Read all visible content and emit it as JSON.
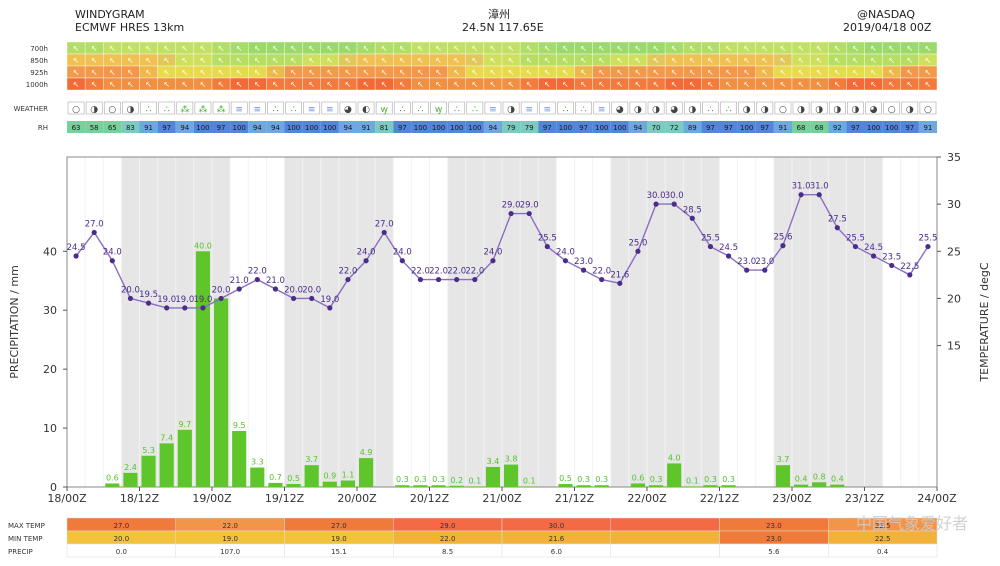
{
  "header": {
    "left_line1": "WINDYGRAM",
    "left_line2": "ECMWF HRES 13km",
    "center_line1": "漳州",
    "center_line2": "24.5N 117.65E",
    "right_line1": "@NASDAQ",
    "right_line2": "2019/04/18 00Z"
  },
  "wind_levels": [
    "700h",
    "850h",
    "925h",
    "1000h"
  ],
  "weather_label": "WEATHER",
  "rh_label": "RH",
  "rh_values": [
    63,
    58,
    65,
    83,
    91,
    97,
    94,
    100,
    97,
    100,
    94,
    94,
    100,
    100,
    100,
    94,
    91,
    81,
    97,
    100,
    100,
    100,
    100,
    94,
    79,
    79,
    97,
    100,
    97,
    100,
    100,
    94,
    70,
    72,
    89,
    97,
    97,
    100,
    97,
    91,
    68,
    68,
    92,
    97,
    100,
    100,
    97,
    91
  ],
  "colors": {
    "bar": "#5ec52b",
    "bar_label": "#57c22a",
    "temp_line": "#8a6fc0",
    "temp_point": "#4b2c8a",
    "temp_label": "#4b2c8a",
    "shade": "#e6e6e6",
    "rh_low": "#5ec58a",
    "rh_high": "#4f7fd2"
  },
  "chart_data": {
    "type": "bar+line",
    "x_ticks": [
      "18/00Z",
      "18/12Z",
      "19/00Z",
      "19/12Z",
      "20/00Z",
      "20/12Z",
      "21/00Z",
      "21/12Z",
      "22/00Z",
      "22/12Z",
      "23/00Z",
      "23/12Z",
      "24/00Z"
    ],
    "precip_series": {
      "name": "PRECIPITATION / mm",
      "ylabel": "PRECIPITATION / mm",
      "ylim": [
        0,
        56
      ],
      "yticks": [
        0,
        10,
        20,
        30,
        40
      ],
      "values": [
        0,
        0,
        0.6,
        2.4,
        5.3,
        7.4,
        9.7,
        40.0,
        32.0,
        9.5,
        3.3,
        0.7,
        0.5,
        3.7,
        0.9,
        1.1,
        4.9,
        0,
        0.3,
        0.3,
        0.3,
        0.2,
        0.1,
        3.4,
        3.8,
        0.1,
        0,
        0.5,
        0.3,
        0.3,
        0,
        0.6,
        0.3,
        4.0,
        0.1,
        0.3,
        0.3,
        0,
        0,
        3.7,
        0.4,
        0.8,
        0.4,
        0,
        0,
        0,
        0,
        0
      ],
      "labels": [
        "",
        "",
        "0.6",
        "2.4",
        "5.3",
        "7.4",
        "9.7",
        "40.0",
        "",
        "9.5",
        "3.3",
        "0.7",
        "0.5",
        "3.7",
        "0.9",
        "1.1",
        "4.9",
        "",
        "0.3",
        "0.3",
        "0.3",
        "0.2",
        "0.1",
        "3.4",
        "3.8",
        "0.1",
        "",
        "0.5",
        "0.3",
        "0.3",
        "",
        "0.6",
        "0.3",
        "4.0",
        "0.1",
        "0.3",
        "0.3",
        "",
        "",
        "3.7",
        "0.4",
        "0.8",
        "0.4",
        "",
        "",
        "",
        "",
        ""
      ]
    },
    "temp_series": {
      "name": "TEMPERATURE / degC",
      "ylabel": "TEMPERATURE / degC",
      "ylim": [
        0,
        35
      ],
      "yticks": [
        15,
        20,
        25,
        30,
        35
      ],
      "x_steps": [
        0,
        1,
        2,
        3,
        4,
        5,
        6,
        7,
        8,
        9,
        10,
        11,
        12,
        13,
        14,
        15,
        16,
        17,
        18,
        19,
        20,
        21,
        22,
        23,
        24,
        25,
        26,
        27,
        28,
        29,
        30,
        31,
        32,
        33,
        34,
        35,
        36,
        37,
        38,
        39,
        40,
        41,
        42,
        43,
        44,
        45,
        46,
        47
      ],
      "values": [
        24.5,
        27.0,
        24.0,
        20.0,
        19.5,
        19.0,
        19.0,
        19.0,
        20.0,
        21.0,
        22.0,
        21.0,
        20.0,
        20.0,
        19.0,
        22.0,
        24.0,
        27.0,
        24.0,
        22.0,
        22.0,
        22.0,
        22.0,
        24.0,
        29.0,
        29.0,
        25.5,
        24.0,
        23.0,
        22.0,
        21.6,
        25.0,
        30.0,
        30.0,
        28.5,
        25.5,
        24.5,
        23.0,
        23.0,
        25.6,
        31.0,
        31.0,
        27.5,
        25.5,
        24.5,
        23.5,
        22.5,
        25.5
      ],
      "labels": [
        "24.5",
        "27.0",
        "24.0",
        "20.0",
        "19.5",
        "19.0",
        "19.0",
        "19.0",
        "20.0",
        "21.0",
        "22.0",
        "21.0",
        "20.0",
        "20.0",
        "19.0",
        "22.0",
        "24.0",
        "27.0",
        "24.0",
        "22.0",
        "22.0",
        "22.0",
        "22.0",
        "24.0",
        "29.0",
        "29.0",
        "25.5",
        "24.0",
        "23.0",
        "22.0",
        "21.6",
        "25.0",
        "30.0",
        "30.0",
        "28.5",
        "25.5",
        "24.5",
        "23.0",
        "23.0",
        "25.6",
        "31.0",
        "31.0",
        "27.5",
        "25.5",
        "24.5",
        "23.5",
        "22.5",
        "25.5"
      ]
    },
    "summary_rows": [
      {
        "label": "MAX TEMP",
        "cells": [
          "27.0",
          "22.0",
          "27.0",
          "29.0",
          "30.0",
          "",
          "23.0",
          "22.5"
        ]
      },
      {
        "label": "MIN TEMP",
        "cells": [
          "20.0",
          "19.0",
          "19.0",
          "22.0",
          "21.6",
          "",
          "23.0",
          "22.5"
        ]
      },
      {
        "label": "PRECIP",
        "cells": [
          "0.0",
          "107.0",
          "15.1",
          "8.5",
          "6.0",
          "",
          "5.6",
          "0.4"
        ]
      }
    ]
  },
  "watermark": "中国气象爱好者"
}
